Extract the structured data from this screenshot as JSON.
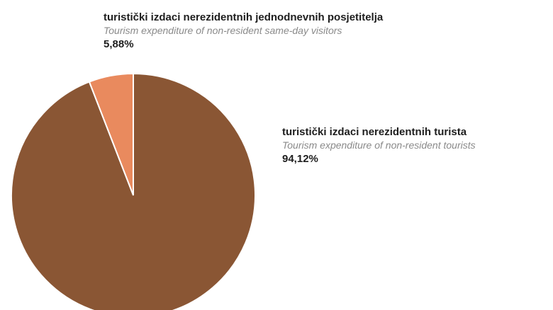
{
  "chart_data": {
    "type": "pie",
    "title": "",
    "slices": [
      {
        "label_hr": "turistički izdaci nerezidentnih jednodnevnih posjetitelja",
        "label_en": "Tourism expenditure of non-resident same-day visitors",
        "percent_label": "5,88%",
        "value": 5.88,
        "color": "#e98a5e"
      },
      {
        "label_hr": "turistički izdaci nerezidentnih turista",
        "label_en": "Tourism expenditure of non-resident tourists",
        "percent_label": "94,12%",
        "value": 94.12,
        "color": "#8a5634"
      }
    ]
  }
}
